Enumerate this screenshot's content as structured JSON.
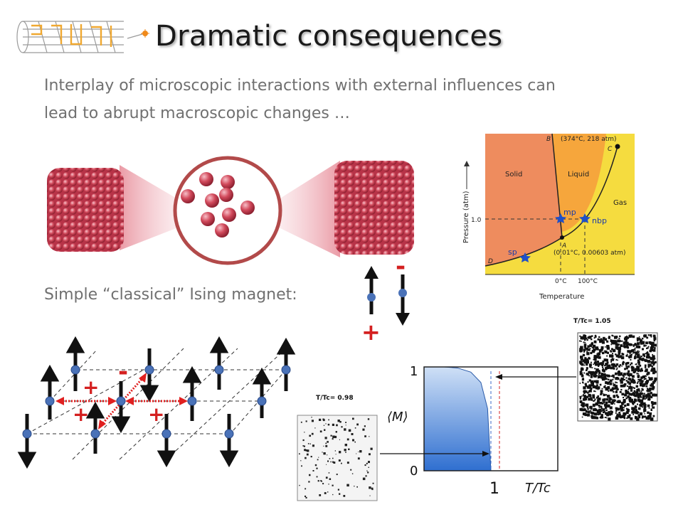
{
  "slide": {
    "title": "Dramatic consequences",
    "intro_line_1": "Interplay of microscopic interactions with external influences can",
    "intro_line_2": "lead to abrupt macroscopic changes …",
    "ising_label": "Simple “classical” Ising magnet:"
  },
  "phase_diagram": {
    "label_b": "B",
    "label_c_coords": "(374°C, 218 atm)",
    "label_c": "C",
    "solid": "Solid",
    "liquid": "Liquid",
    "gas": "Gas",
    "pressure_axis": "Pressure (atm)",
    "tick_1": "1.0",
    "mp": "mp",
    "nbp": "nbp",
    "label_a": "A",
    "sp": "sp",
    "triple_coords": "(0.01°C, 0.00603 atm)",
    "label_d": "D",
    "t0": "0°C",
    "t100": "100°C",
    "temperature_axis": "Temperature",
    "colors": {
      "solid": "#ee8c5e",
      "liquid": "#f6a63c",
      "gas": "#f5dc3f"
    }
  },
  "spin_legend": {
    "minus": "-",
    "plus": "+"
  },
  "lattice": {
    "plus_1": "+",
    "plus_2": "+",
    "plus_3": "+",
    "minus": "-"
  },
  "snapshots": {
    "low": "T/Tc= 0.98",
    "high": "T/Tc= 1.05"
  },
  "magnetization": {
    "y_top": "1",
    "y_bottom": "0",
    "y_label": "⟨M⟩",
    "x_tick": "1",
    "x_label": "T/Tc",
    "chart_data": {
      "type": "area",
      "x": [
        0.0,
        0.3,
        0.5,
        0.7,
        0.85,
        0.95,
        1.0
      ],
      "y": [
        1.0,
        1.0,
        0.99,
        0.95,
        0.85,
        0.6,
        0.0
      ],
      "ylim": [
        0,
        1
      ]
    }
  }
}
